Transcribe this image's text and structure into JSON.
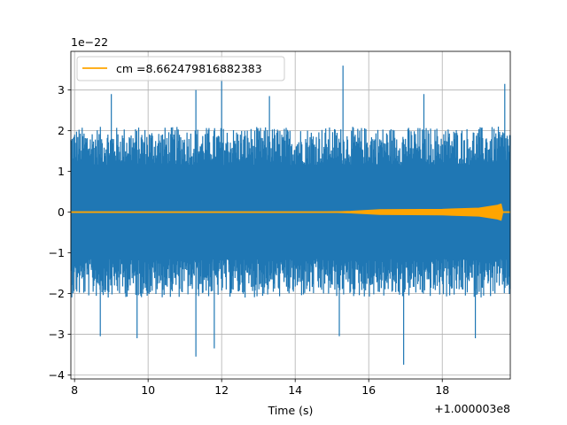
{
  "chart_data": {
    "type": "line",
    "title": "",
    "xlabel": "Time (s)",
    "ylabel": "",
    "x_offset_label": "+1.000003e8",
    "y_scale_label": "1e−22",
    "xlim": [
      7.9,
      19.85
    ],
    "ylim": [
      -4.1,
      3.95
    ],
    "x_ticks": [
      8,
      10,
      12,
      14,
      16,
      18
    ],
    "x_tick_labels": [
      "8",
      "10",
      "12",
      "14",
      "16",
      "18"
    ],
    "y_ticks": [
      -4,
      -3,
      -2,
      -1,
      0,
      1,
      2,
      3
    ],
    "y_tick_labels": [
      "−4",
      "−3",
      "−2",
      "−1",
      "0",
      "1",
      "2",
      "3"
    ],
    "grid": true,
    "legend_position": "top-left",
    "colors": {
      "strain": "#1f77b4",
      "template": "#ffa500"
    },
    "series": [
      {
        "key": "strain",
        "name": "",
        "color": "#1f77b4",
        "shape": "noise",
        "x_range": [
          7.9,
          19.85
        ],
        "typical_amplitude": 2.1,
        "peaks": [
          {
            "x": 12.0,
            "y": 3.25
          },
          {
            "x": 15.3,
            "y": 3.6
          },
          {
            "x": 11.3,
            "y": 3.0
          },
          {
            "x": 9.0,
            "y": 2.9
          },
          {
            "x": 19.7,
            "y": 3.15
          },
          {
            "x": 17.5,
            "y": 2.9
          },
          {
            "x": 13.3,
            "y": 2.85
          },
          {
            "x": 16.95,
            "y": -3.75
          },
          {
            "x": 11.3,
            "y": -3.55
          },
          {
            "x": 11.8,
            "y": -3.35
          },
          {
            "x": 9.7,
            "y": -3.1
          },
          {
            "x": 18.9,
            "y": -3.1
          },
          {
            "x": 8.7,
            "y": -3.05
          },
          {
            "x": 15.2,
            "y": -3.05
          }
        ]
      },
      {
        "key": "template",
        "name": "cm =8.662479816882383",
        "color": "#ffa500",
        "shape": "chirp",
        "x_range": [
          7.9,
          19.85
        ],
        "envelope": [
          {
            "x": 7.9,
            "amp": 0.0
          },
          {
            "x": 14.8,
            "amp": 0.0
          },
          {
            "x": 15.5,
            "amp": 0.02
          },
          {
            "x": 16.3,
            "amp": 0.06
          },
          {
            "x": 18.0,
            "amp": 0.07
          },
          {
            "x": 19.0,
            "amp": 0.1
          },
          {
            "x": 19.5,
            "amp": 0.17
          },
          {
            "x": 19.6,
            "amp": 0.2
          },
          {
            "x": 19.65,
            "amp": 0.0
          },
          {
            "x": 19.85,
            "amp": 0.0
          }
        ]
      }
    ]
  }
}
